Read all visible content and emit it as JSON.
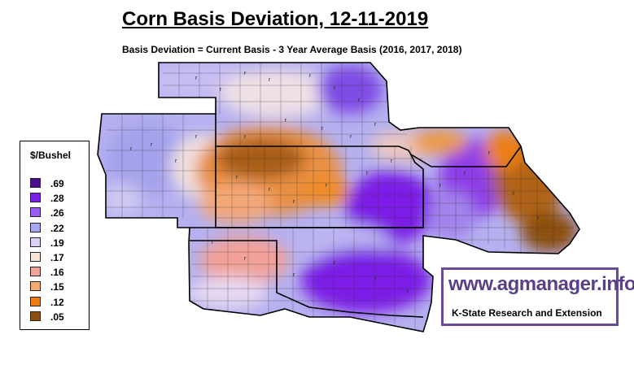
{
  "title": "Corn Basis Deviation, 12-11-2019",
  "subtitle": "Basis Deviation = Current Basis - 3 Year Average Basis (2016, 2017, 2018)",
  "legend": {
    "title": "$/Bushel",
    "items": [
      {
        "label": ".69",
        "color": "#4b0e8f"
      },
      {
        "label": ".28",
        "color": "#7a1ee8"
      },
      {
        "label": ".26",
        "color": "#9a5ef2"
      },
      {
        "label": ".22",
        "color": "#a9a6f0"
      },
      {
        "label": ".19",
        "color": "#dccff5"
      },
      {
        "label": ".17",
        "color": "#f5e3d6"
      },
      {
        "label": ".16",
        "color": "#f2a39a"
      },
      {
        "label": ".15",
        "color": "#f3ab72"
      },
      {
        "label": ".12",
        "color": "#ec7f13"
      },
      {
        "label": ".05",
        "color": "#8c4f0e"
      }
    ]
  },
  "brand": {
    "url": "www.agmanager.info",
    "org": "K-State Research and Extension"
  }
}
